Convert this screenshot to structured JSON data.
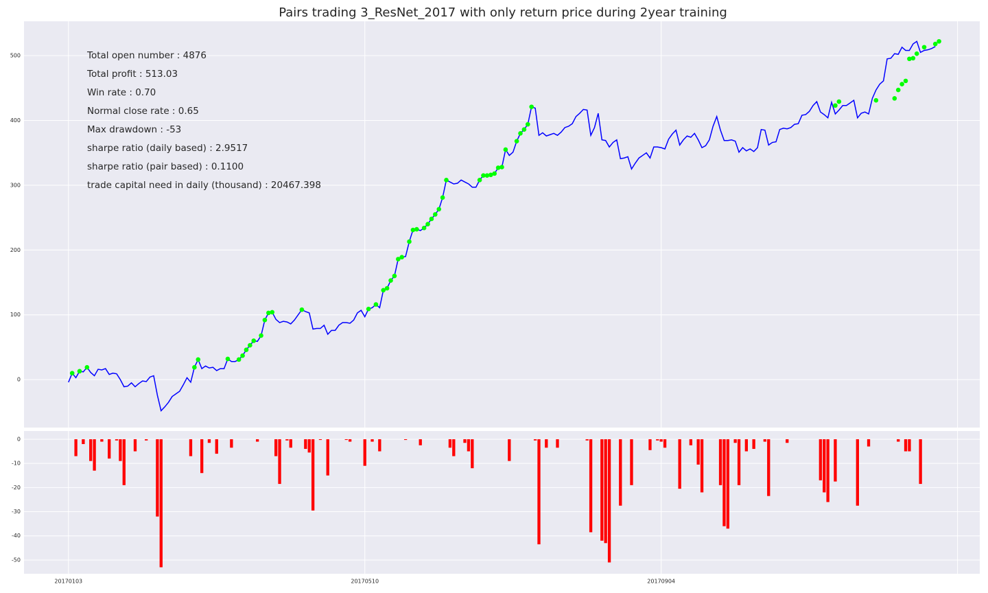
{
  "chart_data": [
    {
      "type": "line",
      "title": "Pairs trading 3_ResNet_2017 with only return price during 2year training",
      "annotations": [
        "Total open number : 4876",
        "Total profit : 513.03",
        "Win rate : 0.70",
        "Normal close rate : 0.65",
        "Max drawdown : -53",
        "sharpe ratio (daily based) : 2.9517",
        "sharpe ratio (pair based) : 0.1100",
        "trade capital need in daily (thousand) : 20467.398"
      ],
      "xlim": [
        -12,
        246
      ],
      "xticks": [
        {
          "value": 0,
          "label": "20170103"
        },
        {
          "value": 80,
          "label": "20170510"
        },
        {
          "value": 160,
          "label": "20170904"
        },
        {
          "value": 240,
          "label": null
        }
      ],
      "ylim": [
        -74,
        553
      ],
      "yticks": [
        0,
        100,
        200,
        300,
        400,
        500
      ],
      "grid": true,
      "background": "#eaeaf2",
      "series": [
        {
          "color": "#0000ff",
          "style": "line",
          "values": [
            -4,
            10,
            3,
            13,
            12,
            19,
            11,
            6,
            16,
            15,
            17,
            8,
            10,
            9,
            0,
            -11,
            -10,
            -5,
            -11,
            -6,
            -2,
            -3,
            4,
            6,
            -24,
            -48,
            -42,
            -35,
            -26,
            -22,
            -18,
            -8,
            3,
            -4,
            19,
            31,
            17,
            21,
            18,
            19,
            14,
            17,
            17,
            32,
            28,
            28,
            31,
            37,
            46,
            53,
            60,
            59,
            68,
            92,
            103,
            104,
            93,
            88,
            90,
            89,
            86,
            92,
            100,
            108,
            105,
            103,
            78,
            79,
            79,
            84,
            70,
            76,
            76,
            84,
            88,
            88,
            87,
            92,
            103,
            107,
            97,
            109,
            111,
            116,
            111,
            138,
            141,
            153,
            160,
            186,
            189,
            190,
            213,
            231,
            232,
            230,
            234,
            240,
            248,
            255,
            263,
            281,
            308,
            305,
            302,
            303,
            308,
            305,
            302,
            297,
            297,
            308,
            315,
            315,
            316,
            318,
            327,
            328,
            355,
            346,
            351,
            368,
            380,
            386,
            394,
            421,
            419,
            377,
            381,
            376,
            378,
            380,
            377,
            382,
            389,
            391,
            395,
            406,
            411,
            417,
            416,
            377,
            389,
            411,
            370,
            369,
            359,
            366,
            370,
            341,
            342,
            344,
            325,
            334,
            342,
            346,
            350,
            342,
            359,
            359,
            358,
            356,
            371,
            379,
            385,
            362,
            370,
            376,
            374,
            380,
            370,
            358,
            361,
            370,
            391,
            406,
            385,
            369,
            369,
            370,
            368,
            351,
            358,
            353,
            356,
            352,
            358,
            386,
            385,
            362,
            366,
            367,
            386,
            388,
            387,
            389,
            394,
            395,
            408,
            409,
            414,
            423,
            429,
            413,
            409,
            404,
            428,
            410,
            416,
            423,
            423,
            427,
            431,
            404,
            411,
            413,
            410,
            434,
            447,
            456,
            461,
            495,
            496,
            503,
            502,
            513,
            508,
            508,
            518,
            522,
            505,
            508,
            509,
            511,
            514
          ]
        },
        {
          "color": "#00ff00",
          "style": "marker",
          "values": [
            null,
            10,
            null,
            13,
            null,
            19,
            null,
            null,
            null,
            null,
            null,
            null,
            null,
            null,
            null,
            null,
            null,
            null,
            null,
            null,
            null,
            null,
            null,
            null,
            null,
            null,
            null,
            null,
            null,
            null,
            null,
            null,
            null,
            null,
            19,
            31,
            null,
            null,
            null,
            null,
            null,
            null,
            null,
            32,
            null,
            null,
            31,
            37,
            46,
            53,
            60,
            null,
            68,
            92,
            103,
            104,
            null,
            null,
            null,
            null,
            null,
            null,
            null,
            108,
            null,
            null,
            null,
            null,
            null,
            null,
            null,
            null,
            null,
            null,
            null,
            null,
            null,
            null,
            null,
            null,
            null,
            109,
            null,
            116,
            null,
            138,
            141,
            153,
            160,
            186,
            189,
            null,
            213,
            231,
            232,
            null,
            234,
            240,
            248,
            255,
            263,
            281,
            308,
            null,
            null,
            null,
            null,
            null,
            null,
            null,
            null,
            308,
            315,
            315,
            316,
            318,
            327,
            328,
            355,
            null,
            null,
            368,
            380,
            386,
            394,
            421,
            null,
            null,
            null,
            null,
            null,
            null,
            null,
            null,
            null,
            null,
            null,
            null,
            null,
            null,
            null,
            null,
            null,
            null,
            null,
            null,
            null,
            null,
            null,
            null,
            null,
            null,
            null,
            null,
            null,
            null,
            null,
            null,
            null,
            null,
            null,
            null,
            null,
            null,
            null,
            null,
            null,
            null,
            null,
            null,
            null,
            null,
            null,
            null,
            null,
            null,
            null,
            null,
            null,
            null,
            null,
            null,
            null,
            null,
            null,
            null,
            null,
            null,
            null,
            null,
            null,
            null,
            null,
            null,
            null,
            null,
            null,
            null,
            null,
            null,
            null,
            null,
            null,
            null,
            null,
            null,
            null,
            423,
            429,
            null,
            null,
            null,
            null,
            null,
            null,
            null,
            null,
            null,
            431,
            null,
            null,
            null,
            null,
            434,
            447,
            456,
            461,
            495,
            496,
            503,
            null,
            513,
            null,
            null,
            518,
            522,
            null,
            null,
            null,
            null,
            null
          ]
        }
      ]
    },
    {
      "type": "bar",
      "xlim": [
        -12,
        246
      ],
      "ylim": [
        -55.7,
        3.4
      ],
      "yticks": [
        0,
        -10,
        -20,
        -30,
        -40,
        -50
      ],
      "grid": true,
      "background": "#eaeaf2",
      "color": "#ff0000",
      "values": [
        0,
        0,
        -7,
        0,
        -2,
        0,
        -9,
        -13,
        0,
        -1,
        0,
        -8,
        0,
        -0.5,
        -9,
        -19,
        0,
        0,
        -5,
        0,
        0,
        -0.5,
        0,
        0,
        -32,
        -53,
        0,
        0,
        0,
        0,
        0,
        0,
        0,
        -7,
        0,
        0,
        -14,
        0,
        -1.5,
        0,
        -6,
        0,
        0,
        0,
        -3.5,
        0,
        0,
        0,
        0,
        0,
        0,
        -1,
        0,
        0,
        0,
        0,
        -7,
        -18.5,
        0,
        -0.5,
        -3.5,
        0,
        0,
        0,
        -4,
        -5.5,
        -29.5,
        0,
        -0.3,
        0,
        -15,
        0,
        0,
        0,
        0,
        -0.3,
        -1,
        0,
        0,
        0,
        -11,
        0,
        -1,
        0,
        -5,
        0,
        0,
        0,
        0,
        0,
        0,
        -0.3,
        0,
        0,
        0,
        -2.5,
        0,
        0,
        0,
        0,
        0,
        0,
        0,
        -3.5,
        -7,
        0,
        0,
        -1.5,
        -5,
        -12,
        0,
        0,
        0,
        0,
        0,
        0,
        0,
        0,
        0,
        -9,
        0,
        0,
        0,
        0,
        0,
        0,
        -0.5,
        -43.5,
        0,
        -3.5,
        0,
        0,
        -3.5,
        0,
        0,
        0,
        0,
        0,
        0,
        0,
        -0.5,
        -38.5,
        0,
        0,
        -42,
        -43,
        -51,
        0,
        0,
        -27.5,
        0,
        0,
        -19,
        0,
        0,
        0,
        0,
        -4.5,
        0,
        -0.5,
        -1,
        -3.5,
        0,
        0,
        0,
        -20.5,
        0,
        0,
        -2.5,
        0,
        -10.5,
        -22,
        0,
        0,
        0,
        0,
        -19,
        -36,
        -37,
        0,
        -1.5,
        -19,
        0,
        -5,
        0,
        -4,
        0,
        0,
        -1,
        -23.5,
        0,
        0,
        0,
        0,
        -1.5,
        0,
        0,
        0,
        0,
        0,
        0,
        0,
        0,
        -17,
        -22,
        -26,
        0,
        -17.5,
        0,
        0,
        0,
        0,
        0,
        -27.5,
        0,
        0,
        -3,
        0,
        0,
        0,
        0,
        0,
        0,
        0,
        -1,
        0,
        -5,
        -5,
        0,
        0,
        -18.5,
        0,
        0,
        0,
        0
      ]
    }
  ]
}
